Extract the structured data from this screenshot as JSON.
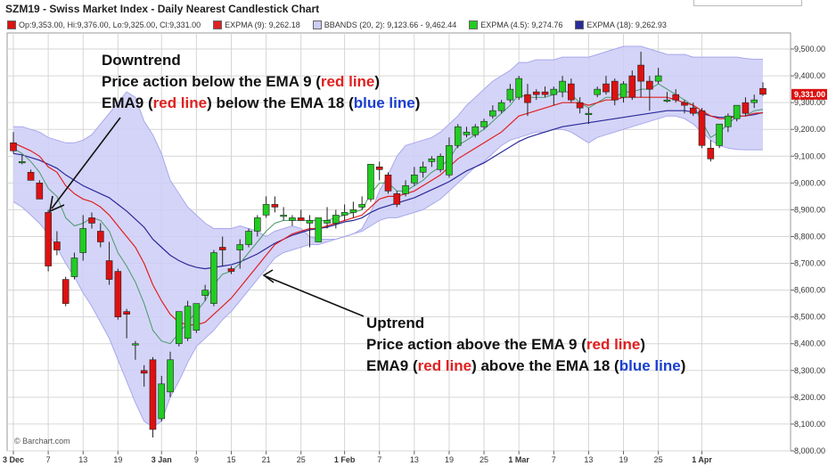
{
  "title": "SZM19 - Swiss Market Index - Daily Nearest Candlestick Chart",
  "legend": {
    "ohlc": "Op:9,353.00, Hi:9,376.00, Lo:9,325.00, Cl:9,331.00",
    "expma9": "EXPMA (9): 9,262.18",
    "bbands": "BBANDS (20, 2): 9,123.66 - 9,462.44",
    "expma45": "EXPMA (4.5): 9,274.76",
    "expma18": "EXPMA (18): 9,262.93"
  },
  "watermark": "© Barchart.com",
  "last_price_label": "9,331.00",
  "annotations": {
    "downtrend": {
      "heading": "Downtrend",
      "line1_a": "Price action below the EMA 9 (",
      "line1_red": "red line",
      "line1_b": ")",
      "line2_a": "EMA9 (",
      "line2_red": "red line",
      "line2_b": ") below the EMA 18 (",
      "line2_blue": "blue line",
      "line2_c": ")"
    },
    "uptrend": {
      "heading": "Uptrend",
      "line1_a": "Price action above the EMA 9 (",
      "line1_red": "red line",
      "line1_b": ")",
      "line2_a": "EMA9 (",
      "line2_red": "red line",
      "line2_b": ") above the EMA 18 (",
      "line2_blue": "blue line",
      "line2_c": ")"
    }
  },
  "colors": {
    "up": "#22cc22",
    "down": "#dd1111",
    "ema9": "#e02020",
    "ema45": "#4a9a6a",
    "ema18": "#2a2a9a",
    "band_fill": "#ccccf7",
    "band_line": "#a8a8ec",
    "grid": "#d6d6d6"
  },
  "chart_data": {
    "type": "candlestick",
    "ylim": [
      8000,
      9560
    ],
    "yticks": [
      "9,500.00",
      "9,400.00",
      "9,300.00",
      "9,200.00",
      "9,100.00",
      "9,000.00",
      "8,900.00",
      "8,800.00",
      "8,700.00",
      "8,600.00",
      "8,500.00",
      "8,400.00",
      "8,300.00",
      "8,200.00",
      "8,100.00",
      "8,000.00"
    ],
    "ytick_values": [
      9500,
      9400,
      9300,
      9200,
      9100,
      9000,
      8900,
      8800,
      8700,
      8600,
      8500,
      8400,
      8300,
      8200,
      8100,
      8000
    ],
    "xticks": [
      {
        "label": "3 Dec",
        "i": 0
      },
      {
        "label": "7",
        "i": 4
      },
      {
        "label": "13",
        "i": 8
      },
      {
        "label": "19",
        "i": 12
      },
      {
        "label": "3 Jan",
        "i": 17
      },
      {
        "label": "9",
        "i": 21
      },
      {
        "label": "15",
        "i": 25
      },
      {
        "label": "21",
        "i": 29
      },
      {
        "label": "25",
        "i": 33
      },
      {
        "label": "1 Feb",
        "i": 38
      },
      {
        "label": "7",
        "i": 42
      },
      {
        "label": "13",
        "i": 46
      },
      {
        "label": "19",
        "i": 50
      },
      {
        "label": "25",
        "i": 54
      },
      {
        "label": "1 Mar",
        "i": 58
      },
      {
        "label": "7",
        "i": 62
      },
      {
        "label": "13",
        "i": 66
      },
      {
        "label": "19",
        "i": 70
      },
      {
        "label": "25",
        "i": 74
      },
      {
        "label": "1 Apr",
        "i": 79
      }
    ],
    "candles": [
      [
        9150,
        9190,
        9110,
        9120
      ],
      [
        9080,
        9105,
        9070,
        9080
      ],
      [
        9040,
        9050,
        9010,
        9010
      ],
      [
        9000,
        9010,
        8940,
        8940
      ],
      [
        8890,
        8900,
        8670,
        8690
      ],
      [
        8780,
        8820,
        8730,
        8750
      ],
      [
        8640,
        8650,
        8540,
        8550
      ],
      [
        8650,
        8740,
        8640,
        8720
      ],
      [
        8740,
        8880,
        8710,
        8830
      ],
      [
        8870,
        8890,
        8830,
        8850
      ],
      [
        8820,
        8850,
        8760,
        8780
      ],
      [
        8710,
        8780,
        8620,
        8640
      ],
      [
        8670,
        8680,
        8490,
        8500
      ],
      [
        8520,
        8530,
        8420,
        8510
      ],
      [
        8400,
        8410,
        8340,
        8400
      ],
      [
        8300,
        8320,
        8240,
        8290
      ],
      [
        8340,
        8350,
        8050,
        8080
      ],
      [
        8120,
        8280,
        8110,
        8250
      ],
      [
        8220,
        8370,
        8200,
        8340
      ],
      [
        8400,
        8520,
        8390,
        8520
      ],
      [
        8420,
        8560,
        8410,
        8540
      ],
      [
        8450,
        8550,
        8440,
        8550
      ],
      [
        8580,
        8620,
        8560,
        8600
      ],
      [
        8550,
        8750,
        8540,
        8740
      ],
      [
        8760,
        8800,
        8690,
        8750
      ],
      [
        8680,
        8690,
        8660,
        8670
      ],
      [
        8750,
        8790,
        8680,
        8770
      ],
      [
        8770,
        8830,
        8760,
        8820
      ],
      [
        8820,
        8880,
        8800,
        8870
      ],
      [
        8880,
        8950,
        8870,
        8920
      ],
      [
        8920,
        8950,
        8890,
        8910
      ],
      [
        8880,
        8910,
        8860,
        8880
      ],
      [
        8860,
        8880,
        8840,
        8870
      ],
      [
        8870,
        8900,
        8860,
        8860
      ],
      [
        8850,
        8880,
        8760,
        8860
      ],
      [
        8780,
        8870,
        8780,
        8870
      ],
      [
        8850,
        8910,
        8830,
        8860
      ],
      [
        8850,
        8900,
        8830,
        8880
      ],
      [
        8880,
        8920,
        8860,
        8890
      ],
      [
        8890,
        8930,
        8870,
        8900
      ],
      [
        8910,
        8950,
        8900,
        8920
      ],
      [
        8940,
        9070,
        8930,
        9070
      ],
      [
        9060,
        9080,
        9010,
        9050
      ],
      [
        9030,
        9040,
        8960,
        8970
      ],
      [
        8960,
        8970,
        8910,
        8920
      ],
      [
        8960,
        9010,
        8950,
        8990
      ],
      [
        9000,
        9060,
        8990,
        9030
      ],
      [
        9040,
        9080,
        9020,
        9060
      ],
      [
        9080,
        9100,
        9060,
        9090
      ],
      [
        9050,
        9110,
        9040,
        9100
      ],
      [
        9030,
        9170,
        9020,
        9140
      ],
      [
        9140,
        9220,
        9130,
        9210
      ],
      [
        9180,
        9210,
        9170,
        9190
      ],
      [
        9180,
        9220,
        9170,
        9210
      ],
      [
        9210,
        9240,
        9200,
        9230
      ],
      [
        9250,
        9290,
        9240,
        9270
      ],
      [
        9270,
        9310,
        9260,
        9300
      ],
      [
        9310,
        9370,
        9300,
        9350
      ],
      [
        9320,
        9400,
        9310,
        9390
      ],
      [
        9330,
        9370,
        9250,
        9300
      ],
      [
        9340,
        9350,
        9310,
        9330
      ],
      [
        9340,
        9360,
        9320,
        9330
      ],
      [
        9330,
        9360,
        9290,
        9350
      ],
      [
        9340,
        9400,
        9320,
        9380
      ],
      [
        9370,
        9390,
        9300,
        9310
      ],
      [
        9300,
        9320,
        9260,
        9280
      ],
      [
        9260,
        9280,
        9220,
        9260
      ],
      [
        9330,
        9360,
        9320,
        9350
      ],
      [
        9370,
        9400,
        9330,
        9340
      ],
      [
        9380,
        9390,
        9290,
        9310
      ],
      [
        9320,
        9380,
        9300,
        9370
      ],
      [
        9400,
        9420,
        9310,
        9320
      ],
      [
        9440,
        9490,
        9320,
        9380
      ],
      [
        9380,
        9400,
        9270,
        9350
      ],
      [
        9380,
        9430,
        9370,
        9400
      ],
      [
        9310,
        9340,
        9300,
        9310
      ],
      [
        9330,
        9350,
        9300,
        9310
      ],
      [
        9300,
        9310,
        9260,
        9290
      ],
      [
        9280,
        9300,
        9250,
        9260
      ],
      [
        9270,
        9280,
        9130,
        9140
      ],
      [
        9130,
        9160,
        9080,
        9090
      ],
      [
        9140,
        9220,
        9130,
        9220
      ],
      [
        9210,
        9260,
        9190,
        9250
      ],
      [
        9240,
        9290,
        9230,
        9290
      ],
      [
        9300,
        9320,
        9250,
        9260
      ],
      [
        9300,
        9330,
        9280,
        9310
      ],
      [
        9353,
        9376,
        9325,
        9331
      ]
    ],
    "ema9": [
      9150,
      9135,
      9120,
      9100,
      9060,
      9040,
      8990,
      8960,
      8940,
      8930,
      8910,
      8880,
      8840,
      8800,
      8760,
      8700,
      8620,
      8560,
      8510,
      8480,
      8470,
      8470,
      8480,
      8510,
      8540,
      8570,
      8610,
      8650,
      8690,
      8730,
      8770,
      8790,
      8810,
      8820,
      8830,
      8830,
      8840,
      8850,
      8860,
      8870,
      8880,
      8910,
      8940,
      8950,
      8950,
      8960,
      8970,
      8990,
      9010,
      9030,
      9060,
      9090,
      9110,
      9130,
      9150,
      9170,
      9190,
      9220,
      9250,
      9260,
      9270,
      9280,
      9290,
      9300,
      9300,
      9300,
      9290,
      9300,
      9310,
      9310,
      9320,
      9320,
      9320,
      9320,
      9320,
      9320,
      9310,
      9300,
      9290,
      9270,
      9250,
      9240,
      9240,
      9250,
      9250,
      9260,
      9262
    ],
    "ema45": [
      9130,
      9110,
      9080,
      9040,
      8980,
      8950,
      8870,
      8840,
      8850,
      8870,
      8860,
      8820,
      8740,
      8690,
      8630,
      8550,
      8450,
      8410,
      8400,
      8440,
      8480,
      8520,
      8560,
      8620,
      8660,
      8670,
      8700,
      8740,
      8780,
      8820,
      8850,
      8860,
      8860,
      8860,
      8860,
      8860,
      8860,
      8870,
      8880,
      8890,
      8900,
      8960,
      9000,
      9000,
      8970,
      8970,
      8990,
      9010,
      9040,
      9060,
      9090,
      9140,
      9160,
      9180,
      9200,
      9230,
      9260,
      9290,
      9330,
      9320,
      9320,
      9320,
      9330,
      9350,
      9330,
      9300,
      9280,
      9300,
      9320,
      9320,
      9340,
      9340,
      9350,
      9350,
      9370,
      9350,
      9330,
      9310,
      9290,
      9230,
      9170,
      9190,
      9220,
      9250,
      9250,
      9270,
      9275
    ],
    "ema18": [
      9110,
      9105,
      9095,
      9085,
      9070,
      9055,
      9030,
      9010,
      8990,
      8975,
      8960,
      8945,
      8920,
      8895,
      8865,
      8835,
      8790,
      8760,
      8730,
      8710,
      8695,
      8685,
      8680,
      8685,
      8690,
      8695,
      8705,
      8720,
      8735,
      8755,
      8775,
      8790,
      8805,
      8815,
      8825,
      8830,
      8835,
      8845,
      8855,
      8860,
      8870,
      8890,
      8905,
      8915,
      8925,
      8935,
      8945,
      8960,
      8975,
      8990,
      9005,
      9025,
      9045,
      9060,
      9075,
      9095,
      9115,
      9135,
      9155,
      9170,
      9180,
      9190,
      9200,
      9210,
      9215,
      9220,
      9225,
      9230,
      9235,
      9240,
      9245,
      9250,
      9255,
      9260,
      9265,
      9270,
      9270,
      9270,
      9265,
      9260,
      9250,
      9245,
      9245,
      9250,
      9250,
      9255,
      9263
    ],
    "bb_upper": [
      9210,
      9210,
      9200,
      9190,
      9170,
      9160,
      9150,
      9150,
      9160,
      9180,
      9220,
      9260,
      9300,
      9340,
      9320,
      9230,
      9180,
      9110,
      9010,
      8960,
      8910,
      8880,
      8850,
      8830,
      8830,
      8830,
      8840,
      8830,
      8820,
      8800,
      8820,
      8830,
      8840,
      8830,
      8800,
      8790,
      8790,
      8790,
      8800,
      8810,
      8830,
      8890,
      8970,
      9030,
      9100,
      9140,
      9150,
      9160,
      9170,
      9190,
      9220,
      9250,
      9290,
      9320,
      9350,
      9380,
      9400,
      9420,
      9450,
      9450,
      9460,
      9460,
      9460,
      9470,
      9470,
      9470,
      9470,
      9480,
      9490,
      9500,
      9510,
      9510,
      9510,
      9500,
      9490,
      9480,
      9480,
      9480,
      9470,
      9470,
      9470,
      9470,
      9470,
      9470,
      9465,
      9462,
      9462
    ],
    "bb_lower": [
      8930,
      8910,
      8880,
      8850,
      8810,
      8760,
      8700,
      8650,
      8590,
      8540,
      8480,
      8420,
      8340,
      8260,
      8180,
      8110,
      8090,
      8110,
      8200,
      8260,
      8330,
      8390,
      8420,
      8450,
      8490,
      8520,
      8560,
      8600,
      8640,
      8680,
      8720,
      8740,
      8750,
      8760,
      8770,
      8770,
      8780,
      8790,
      8800,
      8810,
      8820,
      8840,
      8860,
      8870,
      8870,
      8880,
      8890,
      8900,
      8920,
      8940,
      8970,
      9000,
      9030,
      9060,
      9080,
      9110,
      9140,
      9160,
      9170,
      9180,
      9190,
      9190,
      9200,
      9200,
      9190,
      9170,
      9150,
      9170,
      9180,
      9190,
      9200,
      9210,
      9220,
      9230,
      9240,
      9250,
      9250,
      9240,
      9220,
      9190,
      9160,
      9140,
      9130,
      9125,
      9124,
      9124,
      9124
    ]
  }
}
